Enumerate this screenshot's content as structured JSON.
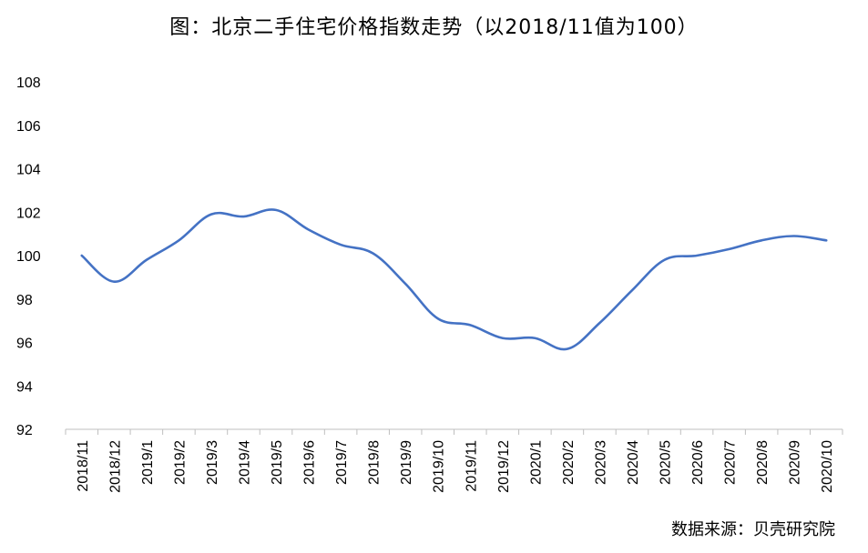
{
  "chart_data": {
    "type": "line",
    "title": "图：北京二手住宅价格指数走势（以2018/11值为100）",
    "xlabel": "",
    "ylabel": "",
    "categories": [
      "2018/11",
      "2018/12",
      "2019/1",
      "2019/2",
      "2019/3",
      "2019/4",
      "2019/5",
      "2019/6",
      "2019/7",
      "2019/8",
      "2019/9",
      "2019/10",
      "2019/11",
      "2019/12",
      "2020/1",
      "2020/2",
      "2020/3",
      "2020/4",
      "2020/5",
      "2020/6",
      "2020/7",
      "2020/8",
      "2020/9",
      "2020/10"
    ],
    "series": [
      {
        "values": [
          100.0,
          98.8,
          99.8,
          100.7,
          101.9,
          101.8,
          102.1,
          101.2,
          100.5,
          100.1,
          98.7,
          97.1,
          96.8,
          96.2,
          96.2,
          95.7,
          96.9,
          98.4,
          99.8,
          100.0,
          100.3,
          100.7,
          100.9,
          100.7
        ],
        "color": "#4472C4"
      }
    ],
    "yticks": [
      "92",
      "94",
      "96",
      "98",
      "100",
      "102",
      "104",
      "106",
      "108"
    ],
    "ylim": [
      92,
      108
    ],
    "grid": false,
    "legend": "none"
  },
  "source_note": "数据来源：贝壳研究院"
}
